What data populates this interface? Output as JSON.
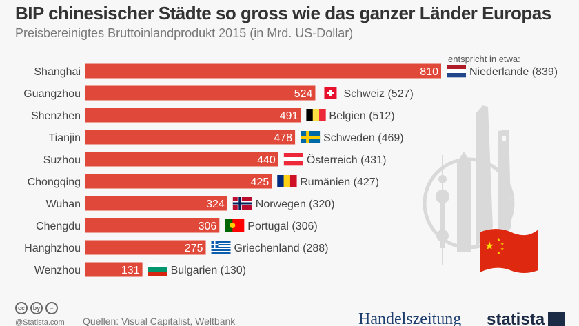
{
  "header": {
    "title": "BIP chinesischer Städte so gross wie das ganzer Länder Europas",
    "subtitle": "Preisbereinigtes Bruttoinlandprodukt 2015 (in Mrd. US-Dollar)",
    "comparison_note": "entspricht in etwa:"
  },
  "chart_data": {
    "type": "bar",
    "orientation": "horizontal",
    "title": "BIP chinesischer Städte so gross wie das ganzer Länder Europas",
    "subtitle": "Preisbereinigtes Bruttoinlandprodukt 2015 (in Mrd. US-Dollar)",
    "xlabel": "",
    "ylabel": "",
    "xlim": [
      0,
      810
    ],
    "grid": false,
    "bar_color": "#e0483a",
    "categories": [
      "Shanghai",
      "Guangzhou",
      "Shenzhen",
      "Tianjin",
      "Suzhou",
      "Chongqing",
      "Wuhan",
      "Chengdu",
      "Hanghzhou",
      "Wenzhou"
    ],
    "values": [
      810,
      524,
      491,
      478,
      440,
      425,
      324,
      306,
      275,
      131
    ],
    "comparisons": [
      {
        "label": "Niederlande (839)",
        "flag": "netherlands-flag",
        "stripes": "h",
        "colors": [
          "#ae1c28",
          "#ffffff",
          "#21468b"
        ]
      },
      {
        "label": "Schweiz (527)",
        "flag": "switzerland-flag",
        "stripes": "swiss",
        "colors": [
          "#e8112d",
          "#ffffff"
        ]
      },
      {
        "label": "Belgien (512)",
        "flag": "belgium-flag",
        "stripes": "v",
        "colors": [
          "#000000",
          "#fae042",
          "#ed2939"
        ]
      },
      {
        "label": "Schweden (469)",
        "flag": "sweden-flag",
        "stripes": "nordic",
        "colors": [
          "#006aa7",
          "#fecc00"
        ]
      },
      {
        "label": "Österreich (431)",
        "flag": "austria-flag",
        "stripes": "h",
        "colors": [
          "#ed2939",
          "#ffffff",
          "#ed2939"
        ]
      },
      {
        "label": "Rumänien (427)",
        "flag": "romania-flag",
        "stripes": "v",
        "colors": [
          "#002b7f",
          "#fcd116",
          "#ce1126"
        ]
      },
      {
        "label": "Norwegen (320)",
        "flag": "norway-flag",
        "stripes": "nordic2",
        "colors": [
          "#ba0c2f",
          "#ffffff",
          "#00205b"
        ]
      },
      {
        "label": "Portugal (306)",
        "flag": "portugal-flag",
        "stripes": "pt",
        "colors": [
          "#006600",
          "#ff0000",
          "#ffcc00"
        ]
      },
      {
        "label": "Griechenland (288)",
        "flag": "greece-flag",
        "stripes": "gr",
        "colors": [
          "#0d5eaf",
          "#ffffff"
        ]
      },
      {
        "label": "Bulgarien (130)",
        "flag": "bulgaria-flag",
        "stripes": "h",
        "colors": [
          "#ffffff",
          "#00966e",
          "#d62612"
        ]
      }
    ]
  },
  "footer": {
    "source": "Quellen: Visual Capitalist, Weltbank",
    "copyright": "@Statista.com",
    "cc_icons": [
      "cc",
      "by",
      "="
    ],
    "publisher": "Handelszeitung",
    "brand": "statista"
  }
}
